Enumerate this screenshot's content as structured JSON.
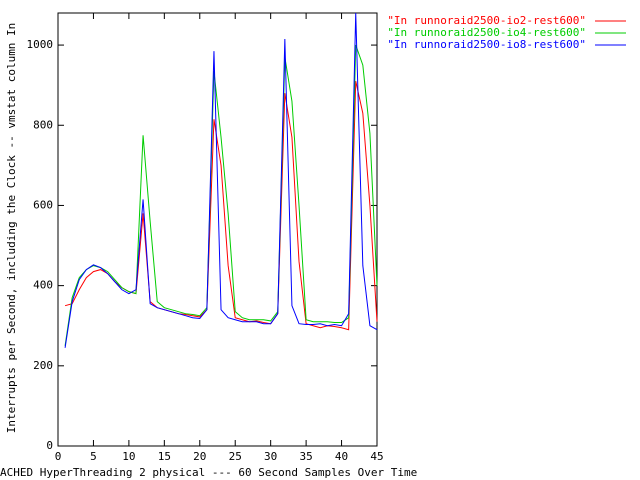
{
  "chart_data": {
    "type": "line",
    "xlabel": "ACHED HyperThreading 2 physical --- 60 Second Samples Over Time",
    "ylabel": "Interrupts per Second, including the Clock -- vmstat column In",
    "x": [
      1,
      2,
      3,
      4,
      5,
      6,
      7,
      8,
      9,
      10,
      11,
      12,
      13,
      14,
      15,
      16,
      17,
      18,
      19,
      20,
      21,
      22,
      23,
      24,
      25,
      26,
      27,
      28,
      29,
      30,
      31,
      32,
      33,
      34,
      35,
      36,
      37,
      38,
      39,
      40,
      41,
      42,
      43,
      44,
      45
    ],
    "series": [
      {
        "name": "\"In runnoraid2500-io2-rest600\"",
        "color": "#ff0000",
        "values": [
          350,
          355,
          390,
          420,
          435,
          440,
          430,
          410,
          395,
          385,
          380,
          580,
          360,
          345,
          340,
          335,
          330,
          328,
          325,
          322,
          340,
          815,
          700,
          450,
          320,
          315,
          310,
          312,
          308,
          305,
          330,
          880,
          770,
          460,
          305,
          300,
          295,
          300,
          298,
          295,
          290,
          910,
          830,
          600,
          310
        ]
      },
      {
        "name": "\"In runnoraid2500-io4-rest600\"",
        "color": "#00cc00",
        "values": [
          250,
          370,
          420,
          440,
          450,
          445,
          435,
          415,
          395,
          385,
          380,
          775,
          560,
          360,
          345,
          340,
          335,
          330,
          328,
          325,
          345,
          935,
          770,
          580,
          335,
          320,
          315,
          315,
          315,
          312,
          335,
          970,
          860,
          600,
          315,
          310,
          310,
          310,
          308,
          308,
          320,
          1000,
          950,
          780,
          400
        ]
      },
      {
        "name": "\"In runnoraid2500-io8-rest600\"",
        "color": "#0000ff",
        "values": [
          245,
          360,
          415,
          440,
          452,
          445,
          430,
          410,
          390,
          380,
          390,
          615,
          355,
          345,
          340,
          335,
          330,
          325,
          320,
          318,
          340,
          985,
          340,
          320,
          315,
          310,
          310,
          310,
          305,
          305,
          330,
          1015,
          350,
          305,
          303,
          303,
          305,
          300,
          303,
          300,
          330,
          1080,
          450,
          300,
          290
        ]
      }
    ],
    "xlim": [
      0,
      45
    ],
    "xticks": [
      0,
      5,
      10,
      15,
      20,
      25,
      30,
      35,
      40,
      45
    ],
    "ylim": [
      0,
      1080
    ],
    "yticks": [
      0,
      200,
      400,
      600,
      800,
      1000
    ],
    "legend": "top-right"
  }
}
